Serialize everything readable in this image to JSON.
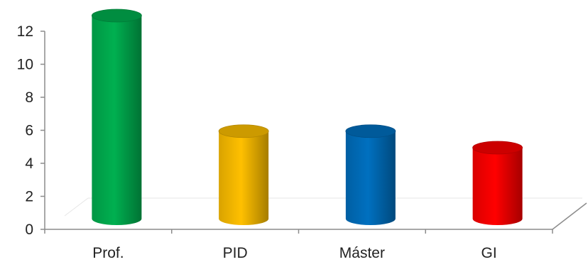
{
  "chart_data": {
    "type": "bar",
    "style": "3d-cylinder",
    "categories": [
      "Prof.",
      "PID",
      "Máster",
      "GI"
    ],
    "values": [
      12,
      5,
      5,
      4
    ],
    "ylim": [
      0,
      12
    ],
    "yticks": [
      "0",
      "2",
      "4",
      "6",
      "8",
      "10",
      "12"
    ],
    "colors": [
      "#00b050",
      "#ffc000",
      "#0070c0",
      "#ff0000"
    ],
    "grid": false,
    "legend": "none"
  }
}
